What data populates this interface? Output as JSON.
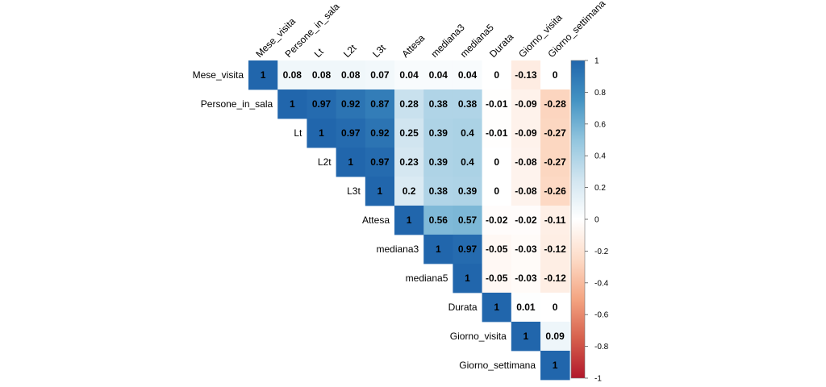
{
  "chart_data": {
    "type": "heatmap",
    "layout": "upper-triangle correlation matrix",
    "variables": [
      "Mese_visita",
      "Persone_in_sala",
      "Lt",
      "L2t",
      "L3t",
      "Attesa",
      "mediana3",
      "mediana5",
      "Durata",
      "Giorno_visita",
      "Giorno_settimana"
    ],
    "values": [
      [
        1,
        0.08,
        0.08,
        0.08,
        0.07,
        0.04,
        0.04,
        0.04,
        0,
        -0.13,
        0
      ],
      [
        null,
        1,
        0.97,
        0.92,
        0.87,
        0.28,
        0.38,
        0.38,
        -0.01,
        -0.09,
        -0.28
      ],
      [
        null,
        null,
        1,
        0.97,
        0.92,
        0.25,
        0.39,
        0.4,
        -0.01,
        -0.09,
        -0.27
      ],
      [
        null,
        null,
        null,
        1,
        0.97,
        0.23,
        0.39,
        0.4,
        0,
        -0.08,
        -0.27
      ],
      [
        null,
        null,
        null,
        null,
        1,
        0.2,
        0.38,
        0.39,
        0,
        -0.08,
        -0.26
      ],
      [
        null,
        null,
        null,
        null,
        null,
        1,
        0.56,
        0.57,
        -0.02,
        -0.02,
        -0.11
      ],
      [
        null,
        null,
        null,
        null,
        null,
        null,
        1,
        0.97,
        -0.05,
        -0.03,
        -0.12
      ],
      [
        null,
        null,
        null,
        null,
        null,
        null,
        null,
        1,
        -0.05,
        -0.03,
        -0.12
      ],
      [
        null,
        null,
        null,
        null,
        null,
        null,
        null,
        null,
        1,
        0.01,
        0
      ],
      [
        null,
        null,
        null,
        null,
        null,
        null,
        null,
        null,
        null,
        1,
        0.09
      ],
      [
        null,
        null,
        null,
        null,
        null,
        null,
        null,
        null,
        null,
        null,
        1
      ]
    ],
    "colorbar": {
      "range": [
        -1,
        1
      ],
      "ticks": [
        "1",
        "0.8",
        "0.6",
        "0.4",
        "0.2",
        "0",
        "-0.2",
        "-0.4",
        "-0.6",
        "-0.8",
        "-1"
      ],
      "colors": {
        "negative": "#B2182B",
        "zero": "#FFFFFF",
        "positive": "#2166AC"
      }
    },
    "title": "",
    "xlabel": "",
    "ylabel": ""
  }
}
